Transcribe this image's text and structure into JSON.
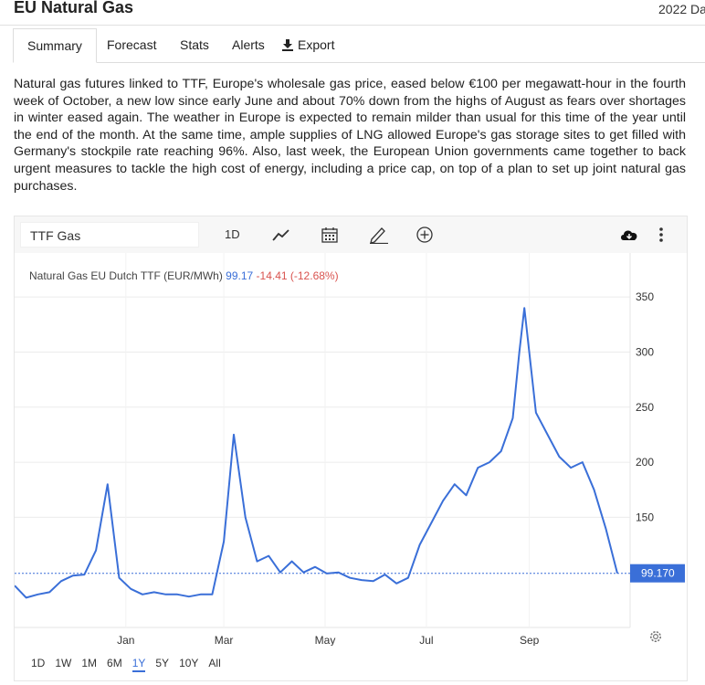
{
  "header": {
    "title": "EU Natural Gas",
    "date_fragment": "2022 Da"
  },
  "tabs": [
    {
      "label": "Summary"
    },
    {
      "label": "Forecast"
    },
    {
      "label": "Stats"
    },
    {
      "label": "Alerts"
    },
    {
      "label": "Export",
      "icon": "download-icon"
    }
  ],
  "article": "Natural gas futures linked to TTF, Europe's wholesale gas price, eased below €100 per megawatt-hour in the fourth week of October, a new low since early June and about 70% down from the highs of August as fears over shortages in winter eased again. The weather in Europe is expected to remain milder than usual for this time of the year until the end of the month. At the same time, ample supplies of LNG allowed Europe's gas storage sites to get filled with Germany's stockpile rate reaching 96%. Also, last week, the European Union governments came together to back urgent measures to tackle the high cost of energy, including a price cap, on top of a plan to set up joint natural gas purchases.",
  "toolbar": {
    "symbol": "TTF Gas",
    "interval": "1D",
    "icons": [
      "line-chart-icon",
      "calendar-icon",
      "pencil-icon",
      "plus-circle-icon",
      "cloud-download-icon",
      "more-vertical-icon"
    ]
  },
  "legend": {
    "name": "Natural Gas EU Dutch TTF (EUR/MWh)",
    "value": "99.17",
    "change": "-14.41 (-12.68%)"
  },
  "colors": {
    "line": "#3a6fd8",
    "last_price_bg": "#3a6fd8",
    "negative": "#d9534f"
  },
  "chart_data": {
    "type": "line",
    "series": [
      {
        "name": "Natural Gas EU Dutch TTF (EUR/MWh)",
        "x": [
          "2021-10-26",
          "2021-11-02",
          "2021-11-09",
          "2021-11-16",
          "2021-11-23",
          "2021-11-30",
          "2021-12-07",
          "2021-12-14",
          "2021-12-21",
          "2021-12-28",
          "2022-01-04",
          "2022-01-11",
          "2022-01-18",
          "2022-01-25",
          "2022-02-01",
          "2022-02-08",
          "2022-02-15",
          "2022-02-22",
          "2022-03-01",
          "2022-03-07",
          "2022-03-14",
          "2022-03-21",
          "2022-03-28",
          "2022-04-04",
          "2022-04-11",
          "2022-04-18",
          "2022-04-25",
          "2022-05-02",
          "2022-05-09",
          "2022-05-16",
          "2022-05-23",
          "2022-05-30",
          "2022-06-06",
          "2022-06-13",
          "2022-06-20",
          "2022-06-27",
          "2022-07-04",
          "2022-07-11",
          "2022-07-18",
          "2022-07-25",
          "2022-08-01",
          "2022-08-08",
          "2022-08-15",
          "2022-08-22",
          "2022-08-26",
          "2022-08-29",
          "2022-09-05",
          "2022-09-12",
          "2022-09-19",
          "2022-09-26",
          "2022-10-03",
          "2022-10-10",
          "2022-10-17",
          "2022-10-24"
        ],
        "y": [
          88,
          77,
          80,
          82,
          92,
          97,
          98,
          120,
          180,
          95,
          85,
          80,
          82,
          80,
          80,
          78,
          80,
          80,
          128,
          225,
          150,
          110,
          115,
          100,
          110,
          100,
          105,
          99,
          100,
          95,
          93,
          92,
          98,
          90,
          95,
          125,
          145,
          165,
          180,
          170,
          195,
          200,
          210,
          240,
          300,
          340,
          245,
          225,
          205,
          195,
          200,
          175,
          140,
          99.17
        ]
      }
    ],
    "x_ticks": [
      "Jan",
      "Mar",
      "May",
      "Jul",
      "Sep"
    ],
    "y_ticks": [
      150,
      200,
      250,
      300,
      350
    ],
    "ylim": [
      50,
      375
    ],
    "last_price_label": "99.170",
    "grid": true
  },
  "ranges": [
    "1D",
    "1W",
    "1M",
    "6M",
    "1Y",
    "5Y",
    "10Y",
    "All"
  ],
  "selected_range": "1Y"
}
